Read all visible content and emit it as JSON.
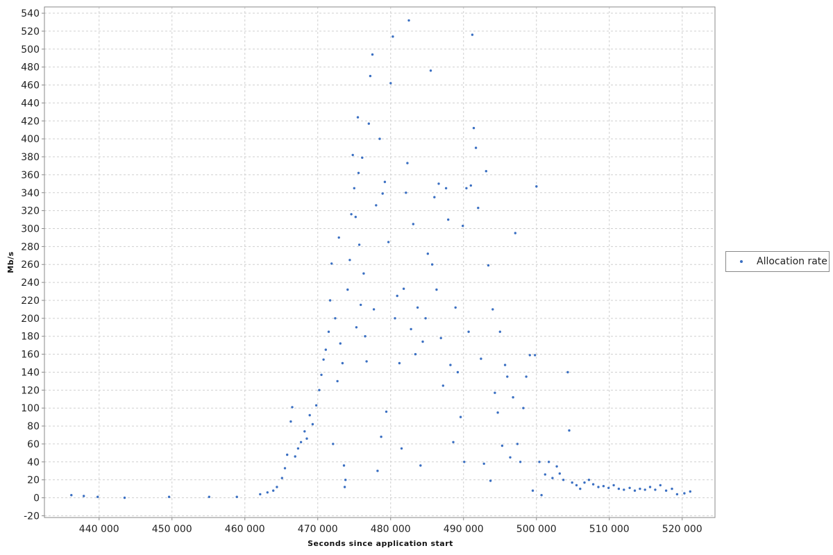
{
  "chart_data": {
    "type": "scatter",
    "xlabel": "Seconds since application start",
    "ylabel": "Mb/s",
    "xlim": [
      432500,
      524500
    ],
    "ylim": [
      -22,
      547
    ],
    "grid": true,
    "legend_position": "right",
    "x_ticks": [
      440000,
      450000,
      460000,
      470000,
      480000,
      490000,
      500000,
      510000,
      520000
    ],
    "x_tick_labels": [
      "440 000",
      "450 000",
      "460 000",
      "470 000",
      "480 000",
      "490 000",
      "500 000",
      "510 000",
      "520 000"
    ],
    "y_ticks": [
      -20,
      0,
      20,
      40,
      60,
      80,
      100,
      120,
      140,
      160,
      180,
      200,
      220,
      240,
      260,
      280,
      300,
      320,
      340,
      360,
      380,
      400,
      420,
      440,
      460,
      480,
      500,
      520,
      540
    ],
    "y_tick_labels": [
      "-20",
      "0",
      "20",
      "40",
      "60",
      "80",
      "100",
      "120",
      "140",
      "160",
      "180",
      "200",
      "220",
      "240",
      "260",
      "280",
      "300",
      "320",
      "340",
      "360",
      "380",
      "400",
      "420",
      "440",
      "460",
      "480",
      "500",
      "520",
      "540"
    ],
    "series": [
      {
        "name": "Allocation rate",
        "color": "#3a6fc2",
        "points": [
          [
            436200,
            3
          ],
          [
            437900,
            2
          ],
          [
            439800,
            1
          ],
          [
            443500,
            0
          ],
          [
            449600,
            1
          ],
          [
            455100,
            1
          ],
          [
            458900,
            1
          ],
          [
            462100,
            4
          ],
          [
            463100,
            6
          ],
          [
            463900,
            8
          ],
          [
            464400,
            12
          ],
          [
            465100,
            22
          ],
          [
            465500,
            33
          ],
          [
            465800,
            48
          ],
          [
            466300,
            85
          ],
          [
            466500,
            101
          ],
          [
            466900,
            46
          ],
          [
            467300,
            55
          ],
          [
            467700,
            62
          ],
          [
            468200,
            74
          ],
          [
            468500,
            66
          ],
          [
            468900,
            92
          ],
          [
            469300,
            82
          ],
          [
            469800,
            103
          ],
          [
            470200,
            120
          ],
          [
            470500,
            137
          ],
          [
            470800,
            154
          ],
          [
            471100,
            165
          ],
          [
            471500,
            185
          ],
          [
            471700,
            220
          ],
          [
            471900,
            261
          ],
          [
            472100,
            60
          ],
          [
            472400,
            200
          ],
          [
            472700,
            130
          ],
          [
            472900,
            290
          ],
          [
            473100,
            172
          ],
          [
            473400,
            150
          ],
          [
            473600,
            36
          ],
          [
            473700,
            12
          ],
          [
            473800,
            20
          ],
          [
            474100,
            232
          ],
          [
            474400,
            265
          ],
          [
            474600,
            316
          ],
          [
            474800,
            382
          ],
          [
            475000,
            345
          ],
          [
            475200,
            313
          ],
          [
            475300,
            190
          ],
          [
            475500,
            424
          ],
          [
            475600,
            362
          ],
          [
            475700,
            282
          ],
          [
            475900,
            215
          ],
          [
            476100,
            379
          ],
          [
            476300,
            250
          ],
          [
            476500,
            180
          ],
          [
            476700,
            152
          ],
          [
            477000,
            417
          ],
          [
            477200,
            470
          ],
          [
            477500,
            494
          ],
          [
            477700,
            210
          ],
          [
            478000,
            326
          ],
          [
            478200,
            30
          ],
          [
            478500,
            400
          ],
          [
            478700,
            68
          ],
          [
            478900,
            339
          ],
          [
            479200,
            352
          ],
          [
            479400,
            96
          ],
          [
            479700,
            285
          ],
          [
            480000,
            462
          ],
          [
            480300,
            514
          ],
          [
            480600,
            200
          ],
          [
            480900,
            225
          ],
          [
            481200,
            150
          ],
          [
            481500,
            55
          ],
          [
            481800,
            233
          ],
          [
            482100,
            340
          ],
          [
            482300,
            373
          ],
          [
            482500,
            532
          ],
          [
            482800,
            188
          ],
          [
            483100,
            305
          ],
          [
            483400,
            160
          ],
          [
            483700,
            212
          ],
          [
            484100,
            36
          ],
          [
            484400,
            174
          ],
          [
            484800,
            200
          ],
          [
            485100,
            272
          ],
          [
            485500,
            476
          ],
          [
            485700,
            260
          ],
          [
            486000,
            335
          ],
          [
            486300,
            232
          ],
          [
            486600,
            350
          ],
          [
            486900,
            178
          ],
          [
            487200,
            125
          ],
          [
            487600,
            345
          ],
          [
            487900,
            310
          ],
          [
            488200,
            148
          ],
          [
            488600,
            62
          ],
          [
            488900,
            212
          ],
          [
            489200,
            140
          ],
          [
            489600,
            90
          ],
          [
            489900,
            303
          ],
          [
            490100,
            40
          ],
          [
            490400,
            345
          ],
          [
            490700,
            185
          ],
          [
            491000,
            348
          ],
          [
            491200,
            516
          ],
          [
            491400,
            412
          ],
          [
            491700,
            390
          ],
          [
            492000,
            323
          ],
          [
            492400,
            155
          ],
          [
            492800,
            38
          ],
          [
            493100,
            364
          ],
          [
            493400,
            259
          ],
          [
            493700,
            19
          ],
          [
            494000,
            210
          ],
          [
            494300,
            117
          ],
          [
            494700,
            95
          ],
          [
            495000,
            185
          ],
          [
            495300,
            58
          ],
          [
            495700,
            148
          ],
          [
            496000,
            135
          ],
          [
            496400,
            45
          ],
          [
            496800,
            112
          ],
          [
            497100,
            295
          ],
          [
            497400,
            60
          ],
          [
            497800,
            40
          ],
          [
            498200,
            100
          ],
          [
            498600,
            135
          ],
          [
            499100,
            159
          ],
          [
            499500,
            8
          ],
          [
            499800,
            159
          ],
          [
            500000,
            347
          ],
          [
            500400,
            40
          ],
          [
            500700,
            3
          ],
          [
            501200,
            26
          ],
          [
            501700,
            40
          ],
          [
            502200,
            22
          ],
          [
            502800,
            35
          ],
          [
            503200,
            27
          ],
          [
            503700,
            20
          ],
          [
            504300,
            140
          ],
          [
            504500,
            75
          ],
          [
            504900,
            17
          ],
          [
            505500,
            14
          ],
          [
            506000,
            10
          ],
          [
            506600,
            17
          ],
          [
            507200,
            20
          ],
          [
            507800,
            15
          ],
          [
            508500,
            12
          ],
          [
            509200,
            13
          ],
          [
            509900,
            11
          ],
          [
            510600,
            14
          ],
          [
            511300,
            10
          ],
          [
            512000,
            9
          ],
          [
            512800,
            11
          ],
          [
            513500,
            8
          ],
          [
            514200,
            10
          ],
          [
            514900,
            9
          ],
          [
            515600,
            12
          ],
          [
            516300,
            9
          ],
          [
            517000,
            14
          ],
          [
            517800,
            8
          ],
          [
            518600,
            10
          ],
          [
            519300,
            4
          ],
          [
            520300,
            5
          ],
          [
            521100,
            7
          ]
        ]
      }
    ]
  }
}
